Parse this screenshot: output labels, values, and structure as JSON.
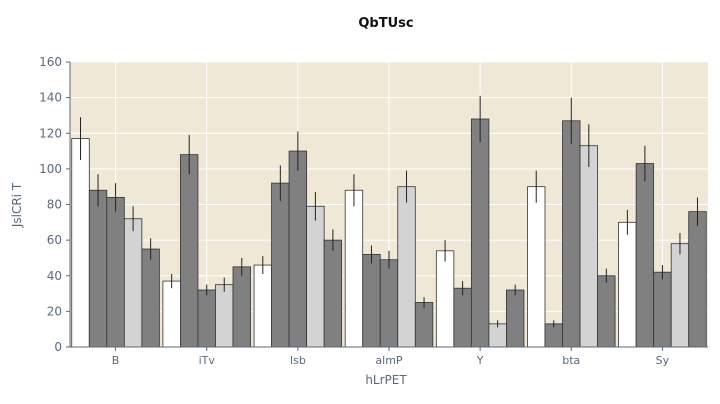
{
  "chart_data": {
    "type": "bar",
    "title": "QbTUsc",
    "xlabel": "hLrPET",
    "ylabel": "JslCRi T",
    "categories": [
      "B",
      "iTv",
      "Isb",
      "almP",
      "Y",
      "bta",
      "Sy"
    ],
    "ylim": [
      0,
      160
    ],
    "yticks": [
      0,
      20,
      40,
      60,
      80,
      100,
      120,
      140,
      160
    ],
    "grid": true,
    "legend": false,
    "series": [
      {
        "color": "#ffffff",
        "values": [
          117,
          37,
          46,
          88,
          54,
          90,
          70
        ],
        "errors": [
          12,
          4,
          5,
          9,
          6,
          9,
          7
        ]
      },
      {
        "color": "#808080",
        "values": [
          88,
          108,
          92,
          52,
          33,
          13,
          103
        ],
        "errors": [
          9,
          11,
          10,
          5,
          4,
          2,
          10
        ]
      },
      {
        "color": "#808080",
        "values": [
          84,
          32,
          110,
          49,
          128,
          127,
          42
        ],
        "errors": [
          8,
          3,
          11,
          5,
          13,
          13,
          4
        ]
      },
      {
        "color": "#d3d3d3",
        "values": [
          72,
          35,
          79,
          90,
          13,
          113,
          58
        ],
        "errors": [
          7,
          4,
          8,
          9,
          2,
          12,
          6
        ]
      },
      {
        "color": "#808080",
        "values": [
          55,
          45,
          60,
          25,
          32,
          40,
          76
        ],
        "errors": [
          6,
          5,
          6,
          3,
          3,
          4,
          8
        ]
      }
    ],
    "colors": {
      "plot_background": "#efe8d6",
      "grid": "#ffffff",
      "text": "#5a6a7a",
      "bar_edge": "#333333"
    }
  }
}
